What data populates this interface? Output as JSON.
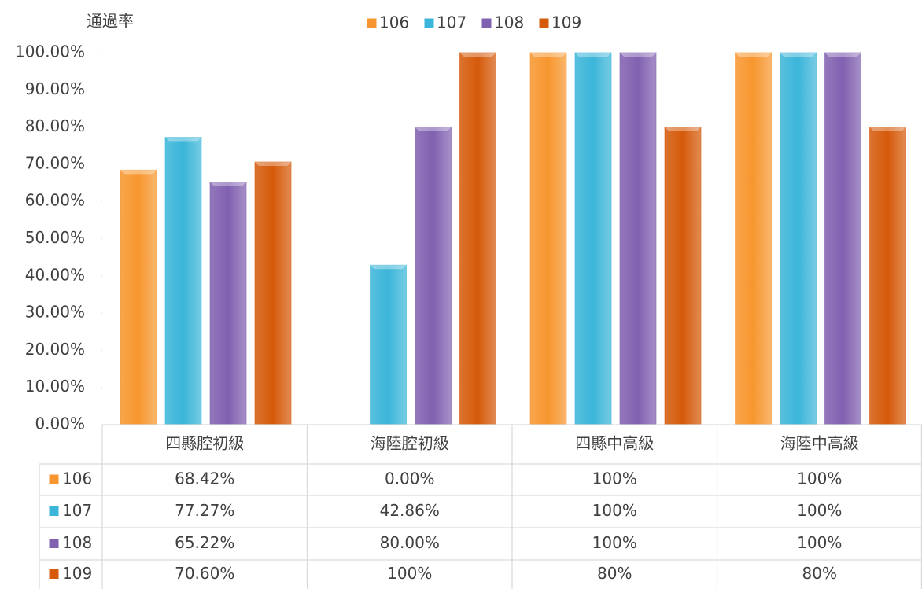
{
  "chart_data": {
    "type": "bar",
    "y_axis_title": "通過率",
    "categories": [
      "四縣腔初級",
      "海陸腔初級",
      "四縣中高級",
      "海陸中高級"
    ],
    "series": [
      {
        "name": "106",
        "color": "#f7962e",
        "values": [
          68.42,
          0,
          100,
          100
        ],
        "value_labels": [
          "68.42%",
          "0.00%",
          "100%",
          "100%"
        ]
      },
      {
        "name": "107",
        "color": "#3bb5d9",
        "values": [
          77.27,
          42.86,
          100,
          100
        ],
        "value_labels": [
          "77.27%",
          "42.86%",
          "100%",
          "100%"
        ]
      },
      {
        "name": "108",
        "color": "#8060b0",
        "values": [
          65.22,
          80,
          100,
          100
        ],
        "value_labels": [
          "65.22%",
          "80.00%",
          "100%",
          "100%"
        ]
      },
      {
        "name": "109",
        "color": "#d55a0a",
        "values": [
          70.6,
          100,
          80,
          80
        ],
        "value_labels": [
          "70.60%",
          "100%",
          "80%",
          "80%"
        ]
      }
    ],
    "ylim": [
      0,
      100
    ],
    "yticks": [
      {
        "value": 0,
        "label": "0.00%"
      },
      {
        "value": 10,
        "label": "10.00%"
      },
      {
        "value": 20,
        "label": "20.00%"
      },
      {
        "value": 30,
        "label": "30.00%"
      },
      {
        "value": 40,
        "label": "40.00%"
      },
      {
        "value": 50,
        "label": "50.00%"
      },
      {
        "value": 60,
        "label": "60.00%"
      },
      {
        "value": 70,
        "label": "70.00%"
      },
      {
        "value": 80,
        "label": "80.00%"
      },
      {
        "value": 90,
        "label": "90.00%"
      },
      {
        "value": 100,
        "label": "100.00%"
      }
    ],
    "legend": "top",
    "grid": false
  }
}
